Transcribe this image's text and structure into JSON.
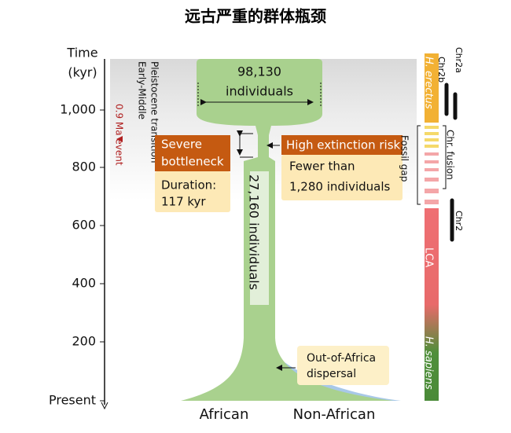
{
  "header": {
    "title": "远古严重的群体瓶颈"
  },
  "axis": {
    "title": [
      "Time",
      "(kyr)"
    ],
    "ticks": [
      "1,000",
      "800",
      "600",
      "400",
      "200",
      "Present"
    ]
  },
  "transition": {
    "lines": [
      "Early-Middle",
      "Pleistocene transition"
    ],
    "event": "0.9 Ma event"
  },
  "population": {
    "top": [
      "98,130",
      "individuals"
    ],
    "neck": "27,160 individuals",
    "left_base": "African",
    "right_base": "Non-African"
  },
  "bottleneck": {
    "title": [
      "Severe",
      "bottleneck"
    ],
    "detail": [
      "Duration:",
      "117 kyr"
    ]
  },
  "risk": {
    "title": "High extinction risk",
    "detail": [
      "Fewer than",
      "1,280 individuals"
    ]
  },
  "dispersal": [
    "Out-of-Africa",
    "dispersal"
  ],
  "lineage": {
    "erectus": "H. erectus",
    "gap": "Fossil gap",
    "lca": "LCA",
    "sapiens": "H. sapiens",
    "chromosomes": [
      "Chr2a",
      "Chr2b",
      "Chr. fusion",
      "Chr2"
    ]
  }
}
